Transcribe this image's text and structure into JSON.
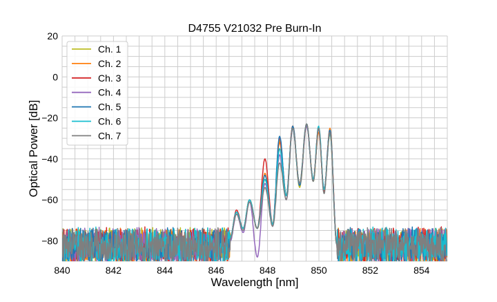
{
  "chart_data": {
    "type": "line",
    "title": "D4755 V21032 Pre Burn-In",
    "xlabel": "Wavelength [nm]",
    "ylabel": "Optical Power [dB]",
    "xlim": [
      840,
      855
    ],
    "ylim": [
      -90,
      20
    ],
    "xticks": [
      840,
      842,
      844,
      846,
      848,
      850,
      852,
      854
    ],
    "yticks": [
      20,
      0,
      -20,
      -40,
      -60,
      -80
    ],
    "grid": true,
    "minor_grid_x_step": 0.5,
    "minor_grid_y_step": 5,
    "legend_position": "top-left",
    "noise_floor_db": [
      -90,
      -73
    ],
    "band_edges_nm": [
      846.5,
      850.7
    ],
    "knot_wavelengths_nm": [
      846.55,
      846.79,
      847.05,
      847.3,
      847.6,
      847.9,
      848.2,
      848.47,
      848.73,
      848.98,
      849.25,
      849.52,
      849.78,
      849.99,
      850.2,
      850.43,
      850.7
    ],
    "series": [
      {
        "name": "Ch. 1",
        "color": "#bcbd22",
        "knot_db": [
          -78,
          -66,
          -74,
          -60,
          -74,
          -50,
          -72,
          -31,
          -58,
          -24,
          -54,
          -23,
          -51,
          -25,
          -56,
          -28,
          -82
        ]
      },
      {
        "name": "Ch. 2",
        "color": "#ff7f0e",
        "knot_db": [
          -78,
          -66,
          -74,
          -60,
          -74,
          -47,
          -72,
          -32,
          -58,
          -24,
          -52,
          -24,
          -50,
          -27,
          -55,
          -25,
          -82
        ]
      },
      {
        "name": "Ch. 3",
        "color": "#d62728",
        "knot_db": [
          -78,
          -65,
          -74,
          -60,
          -74,
          -40,
          -72,
          -30,
          -58,
          -24,
          -53,
          -23,
          -50,
          -25,
          -56,
          -26,
          -82
        ]
      },
      {
        "name": "Ch. 4",
        "color": "#9467bd",
        "knot_db": [
          -80,
          -67,
          -76,
          -61,
          -88,
          -52,
          -73,
          -38,
          -60,
          -25,
          -53,
          -24,
          -50,
          -25,
          -55,
          -27,
          -82
        ]
      },
      {
        "name": "Ch. 5",
        "color": "#1f77b4",
        "knot_db": [
          -78,
          -66,
          -74,
          -60,
          -74,
          -48,
          -72,
          -29,
          -58,
          -24,
          -53,
          -23,
          -51,
          -25,
          -55,
          -26,
          -82
        ]
      },
      {
        "name": "Ch. 6",
        "color": "#17becf",
        "knot_db": [
          -78,
          -66,
          -74,
          -60,
          -74,
          -50,
          -72,
          -35,
          -58,
          -25,
          -52,
          -23,
          -50,
          -24,
          -55,
          -28,
          -82
        ]
      },
      {
        "name": "Ch. 7",
        "color": "#7f7f7f",
        "knot_db": [
          -79,
          -67,
          -75,
          -61,
          -74,
          -54,
          -73,
          -42,
          -60,
          -25,
          -52,
          -23,
          -51,
          -25,
          -57,
          -27,
          -82
        ]
      }
    ]
  }
}
